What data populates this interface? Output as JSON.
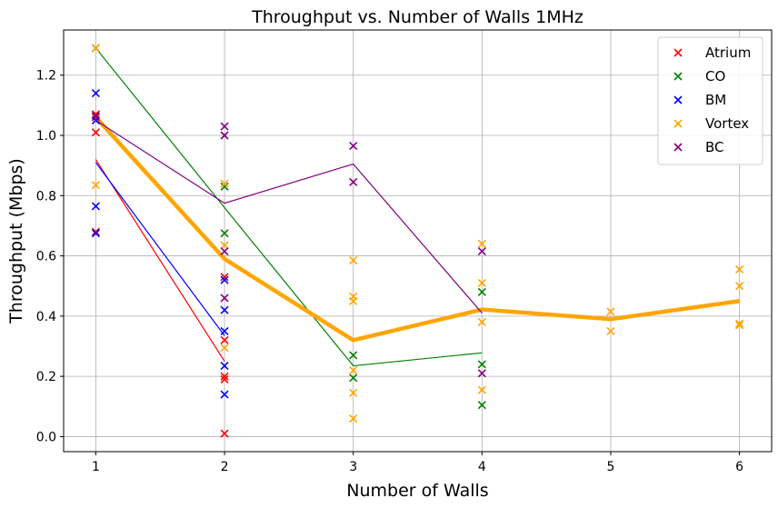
{
  "chart_data": {
    "type": "scatter",
    "title": "Throughput vs. Number of Walls 1MHz",
    "xlabel": "Number of Walls",
    "ylabel": "Throughput (Mbps)",
    "xlim": [
      0.75,
      6.25
    ],
    "ylim": [
      -0.05,
      1.35
    ],
    "xticks": [
      1,
      2,
      3,
      4,
      5,
      6
    ],
    "yticks": [
      0.0,
      0.2,
      0.4,
      0.6,
      0.8,
      1.0,
      1.2
    ],
    "grid": true,
    "legend_position": "top-right",
    "series": [
      {
        "name": "Atrium",
        "color": "#ff0000",
        "points": [
          [
            1,
            1.07
          ],
          [
            1,
            1.06
          ],
          [
            1,
            1.01
          ],
          [
            1,
            0.68
          ],
          [
            2,
            0.53
          ],
          [
            2,
            0.32
          ],
          [
            2,
            0.2
          ],
          [
            2,
            0.19
          ],
          [
            2,
            0.01
          ]
        ],
        "trend": [
          [
            1,
            0.92
          ],
          [
            2,
            0.25
          ]
        ]
      },
      {
        "name": "CO",
        "color": "#008000",
        "points": [
          [
            1,
            1.29
          ],
          [
            2,
            0.83
          ],
          [
            2,
            0.675
          ],
          [
            3,
            0.27
          ],
          [
            3,
            0.195
          ],
          [
            4,
            0.48
          ],
          [
            4,
            0.24
          ],
          [
            4,
            0.105
          ]
        ],
        "trend": [
          [
            1,
            1.29
          ],
          [
            2,
            0.76
          ],
          [
            3,
            0.235
          ],
          [
            4,
            0.278
          ]
        ]
      },
      {
        "name": "BM",
        "color": "#0000ff",
        "points": [
          [
            1,
            1.14
          ],
          [
            1,
            1.05
          ],
          [
            1,
            0.765
          ],
          [
            1,
            0.675
          ],
          [
            2,
            0.52
          ],
          [
            2,
            0.42
          ],
          [
            2,
            0.35
          ],
          [
            2,
            0.235
          ],
          [
            2,
            0.14
          ]
        ],
        "trend": [
          [
            1,
            0.91
          ],
          [
            2,
            0.335
          ]
        ]
      },
      {
        "name": "Vortex",
        "color": "#ffa500",
        "points": [
          [
            1,
            1.29
          ],
          [
            1,
            0.835
          ],
          [
            2,
            0.84
          ],
          [
            2,
            0.635
          ],
          [
            2,
            0.295
          ],
          [
            3,
            0.585
          ],
          [
            3,
            0.465
          ],
          [
            3,
            0.45
          ],
          [
            3,
            0.22
          ],
          [
            3,
            0.145
          ],
          [
            3,
            0.06
          ],
          [
            4,
            0.64
          ],
          [
            4,
            0.51
          ],
          [
            4,
            0.38
          ],
          [
            4,
            0.155
          ],
          [
            5,
            0.415
          ],
          [
            5,
            0.35
          ],
          [
            6,
            0.555
          ],
          [
            6,
            0.5
          ],
          [
            6,
            0.375
          ],
          [
            6,
            0.37
          ]
        ],
        "trend": [
          [
            1,
            1.06
          ],
          [
            2,
            0.59
          ],
          [
            3,
            0.32
          ],
          [
            4,
            0.422
          ],
          [
            5,
            0.39
          ],
          [
            6,
            0.45
          ]
        ]
      },
      {
        "name": "BC",
        "color": "#800080",
        "points": [
          [
            1,
            1.065
          ],
          [
            2,
            1.03
          ],
          [
            2,
            1.0
          ],
          [
            2,
            0.615
          ],
          [
            2,
            0.46
          ],
          [
            3,
            0.965
          ],
          [
            3,
            0.845
          ],
          [
            4,
            0.615
          ],
          [
            4,
            0.21
          ]
        ],
        "trend": [
          [
            1,
            1.05
          ],
          [
            2,
            0.775
          ],
          [
            3,
            0.905
          ],
          [
            4,
            0.41
          ]
        ]
      }
    ]
  }
}
